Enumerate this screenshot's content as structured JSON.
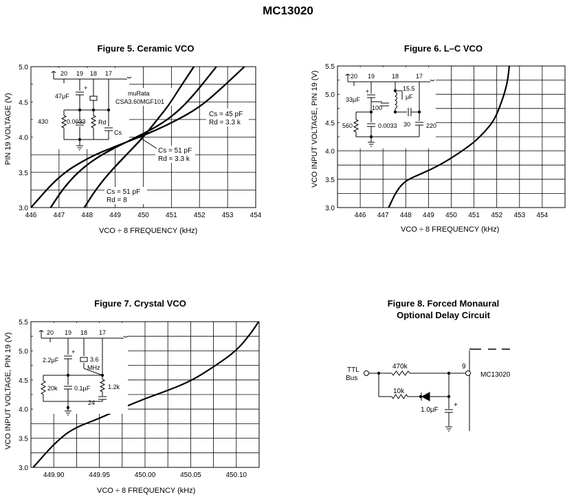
{
  "page_title": "MC13020",
  "colors": {
    "line": "#000000",
    "background": "#ffffff"
  },
  "chart_data": [
    {
      "id": "fig5",
      "type": "line",
      "title": "Figure 5. Ceramic VCO",
      "xlabel": "VCO ÷ 8 FREQUENCY (kHz)",
      "ylabel": "PIN 19 VOLTAGE (V)",
      "xlim": [
        446,
        454
      ],
      "ylim": [
        3.0,
        5.0
      ],
      "xticks": [
        "446",
        "447",
        "448",
        "449",
        "450",
        "451",
        "452",
        "453",
        "454"
      ],
      "yticks": [
        "3.0",
        "3.5",
        "4.0",
        "4.5",
        "5.0"
      ],
      "grid": true,
      "series": [
        {
          "annotation": [
            "Cs = 45 pF",
            "Rd = 3.3 k"
          ],
          "x": [
            446.0,
            447.0,
            448.0,
            449.0,
            450.0,
            451.0,
            452.0,
            452.8,
            453.6
          ],
          "y": [
            3.0,
            3.45,
            3.7,
            3.87,
            4.02,
            4.2,
            4.42,
            4.7,
            5.0
          ]
        },
        {
          "annotation": [
            "Cs = 51 pF",
            "Rd = 3.3 k"
          ],
          "x": [
            446.7,
            447.2,
            447.8,
            448.5,
            449.5,
            450.5,
            451.2,
            451.8,
            452.6
          ],
          "y": [
            3.0,
            3.3,
            3.55,
            3.75,
            3.95,
            4.15,
            4.35,
            4.6,
            5.0
          ]
        },
        {
          "annotation": [
            "Cs = 51 pF",
            "Rd = 8"
          ],
          "x": [
            447.9,
            448.3,
            448.8,
            449.4,
            450.0,
            450.5,
            450.9,
            451.3,
            451.8
          ],
          "y": [
            3.0,
            3.25,
            3.5,
            3.75,
            4.0,
            4.25,
            4.45,
            4.7,
            5.0
          ]
        }
      ],
      "schematic": {
        "pins": [
          "20",
          "19",
          "18",
          "17"
        ],
        "cap1": "47μF",
        "r1": "430",
        "c2": "0.0033",
        "rd": "Rd",
        "cs": "Cs",
        "crystal_name": [
          "muRata",
          "CSA3.60MGF101"
        ],
        "plus": "+"
      }
    },
    {
      "id": "fig6",
      "type": "line",
      "title": "Figure 6. L–C VCO",
      "xlabel": "VCO ÷ 8 FREQUENCY (kHz)",
      "ylabel": "VCO INPUT VOLTAGE, PIN 19 (V)",
      "xlim": [
        445,
        455
      ],
      "ylim": [
        3.0,
        5.5
      ],
      "xticks": [
        "446",
        "447",
        "448",
        "449",
        "450",
        "451",
        "452",
        "453",
        "454"
      ],
      "yticks": [
        "3.0",
        "3.5",
        "4.0",
        "4.5",
        "5.0",
        "5.5"
      ],
      "grid": true,
      "series": [
        {
          "x": [
            447.25,
            447.6,
            448.0,
            448.7,
            449.5,
            450.3,
            451.0,
            451.5,
            451.9,
            452.2,
            452.4,
            452.5,
            452.55
          ],
          "y": [
            3.0,
            3.3,
            3.48,
            3.6,
            3.75,
            3.95,
            4.15,
            4.35,
            4.55,
            4.85,
            5.1,
            5.3,
            5.5
          ]
        }
      ],
      "schematic": {
        "pins": [
          "20",
          "19",
          "18",
          "17"
        ],
        "cap1": "33μF",
        "cap2": "100",
        "ind": [
          "15.5",
          "μF"
        ],
        "r1": "560",
        "c3": "0.0033",
        "c4": "30",
        "c5": "220",
        "plus": "+"
      }
    },
    {
      "id": "fig7",
      "type": "line",
      "title": "Figure 7. Crystal VCO",
      "xlabel": "VCO ÷ 8 FREQUENCY (kHz)",
      "ylabel": "VCO INPUT VOLTAGE, PIN 19 (V)",
      "xlim": [
        449.875,
        450.125
      ],
      "ylim": [
        3.0,
        5.5
      ],
      "xticks": [
        "449.90",
        "449.95",
        "450.00",
        "450.05",
        "450.10"
      ],
      "yticks": [
        "3.0",
        "3.5",
        "4.0",
        "4.5",
        "5.0",
        "5.5"
      ],
      "grid": true,
      "series": [
        {
          "x": [
            449.8775,
            449.9,
            449.92,
            449.95,
            449.975,
            450.0,
            450.025,
            450.05,
            450.075,
            450.1,
            450.115,
            450.1245
          ],
          "y": [
            3.0,
            3.4,
            3.66,
            3.84,
            4.02,
            4.18,
            4.32,
            4.48,
            4.72,
            5.0,
            5.28,
            5.5
          ]
        }
      ],
      "schematic": {
        "pins": [
          "20",
          "19",
          "18",
          "17"
        ],
        "cap1": "2.2μF",
        "xtal": [
          "3.6",
          "MHz"
        ],
        "r1": "20k",
        "c2": "0.1μF",
        "r2": "1.2k",
        "c3": "24",
        "plus": "+"
      }
    }
  ],
  "figure8": {
    "title": [
      "Figure 8. Forced Monaural",
      "Optional Delay Circuit"
    ],
    "input_label": [
      "TTL",
      "Bus"
    ],
    "r1": "470k",
    "r2": "10k",
    "cap": "1.0μF",
    "plus": "+",
    "pin": "9",
    "chip": "MC13020"
  }
}
